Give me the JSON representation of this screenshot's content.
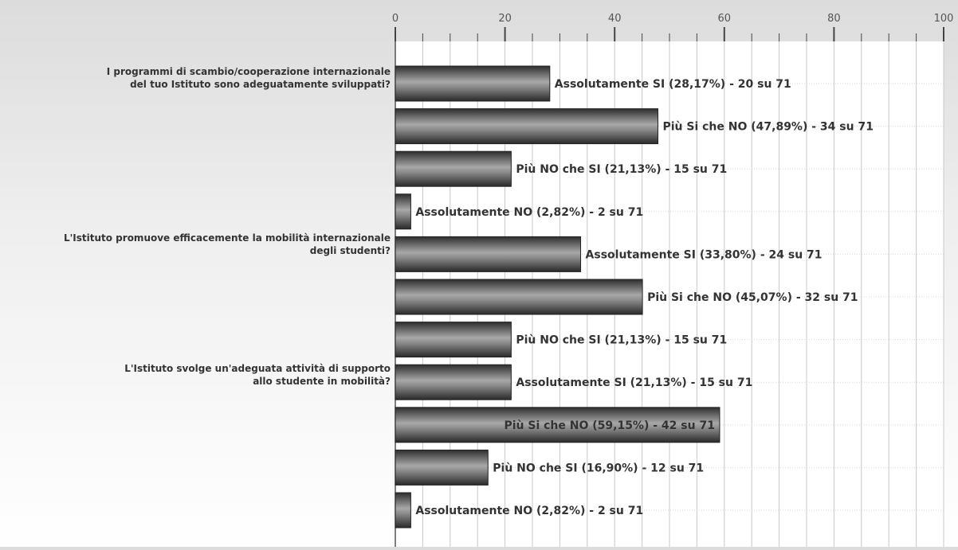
{
  "chart_data": {
    "type": "bar",
    "orientation": "horizontal",
    "xlim": [
      0,
      100
    ],
    "x_ticks": [
      "0",
      "20",
      "40",
      "60",
      "80",
      "100"
    ],
    "grid": true,
    "questions": [
      "I programmi di scambio/cooperazione internazionale del tuo Istituto sono adeguatamente sviluppati?",
      "L'Istituto promuove efficacemente la mobilità internazionale degli studenti?",
      "L'Istituto svolge un'adeguata attività di supporto allo studente in mobilità?"
    ],
    "question_lines": [
      [
        "I programmi di scambio/cooperazione internazionale",
        "del tuo Istituto sono adeguatamente sviluppati?"
      ],
      [
        "L'Istituto promuove efficacemente la mobilità internazionale",
        "degli studenti?"
      ],
      [
        "L'Istituto svolge un'adeguata attività di supporto",
        "allo studente in mobilità?"
      ]
    ],
    "bars": [
      {
        "question": 0,
        "value": 28.17,
        "label": "Assolutamente SI (28,17%) - 20 su 71"
      },
      {
        "question": 0,
        "value": 47.89,
        "label": "Più Si che NO (47,89%) - 34 su 71"
      },
      {
        "question": 0,
        "value": 21.13,
        "label": "Più NO che SI (21,13%) - 15 su 71"
      },
      {
        "question": 0,
        "value": 2.82,
        "label": "Assolutamente NO (2,82%) - 2 su 71"
      },
      {
        "question": 1,
        "value": 33.8,
        "label": "Assolutamente SI (33,80%) - 24 su 71"
      },
      {
        "question": 1,
        "value": 45.07,
        "label": "Più Si che NO (45,07%) - 32 su 71"
      },
      {
        "question": 1,
        "value": 21.13,
        "label": "Più NO che SI (21,13%) - 15 su 71"
      },
      {
        "question": 2,
        "value": 21.13,
        "label": "Assolutamente SI (21,13%) - 15 su 71"
      },
      {
        "question": 2,
        "value": 59.15,
        "label": "Più Si che NO (59,15%) - 42 su 71"
      },
      {
        "question": 2,
        "value": 16.9,
        "label": "Più NO che SI (16,90%) - 12 su 71"
      },
      {
        "question": 2,
        "value": 2.82,
        "label": "Assolutamente NO (2,82%) - 2 su 71"
      }
    ],
    "colors": {
      "bar_dark": "#3a3a3a",
      "bar_light": "#9a9a9a",
      "grid": "#c8c8c8",
      "text": "#333333"
    }
  }
}
